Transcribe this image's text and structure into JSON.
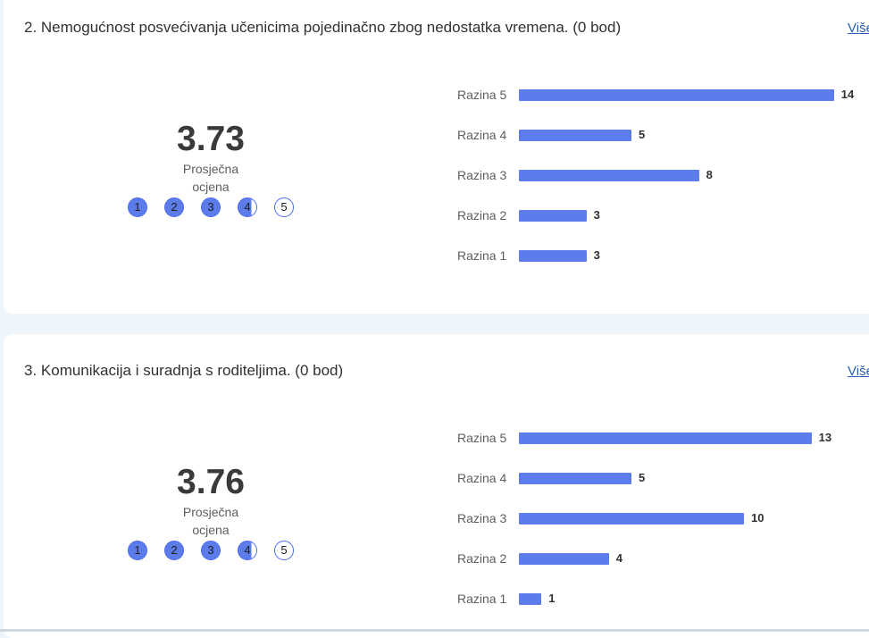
{
  "accent_color": "#5b7cea",
  "more_label": "Više",
  "avg_label": "Prosječna ocjena",
  "scale": [
    "1",
    "2",
    "3",
    "4",
    "5"
  ],
  "questions": [
    {
      "title": "2. Nemogućnost posvećivanja učenicima pojedinačno zbog nedostatka vremena. (0 bod)",
      "average": "3.73",
      "chart_data": {
        "type": "bar",
        "categories": [
          "Razina 5",
          "Razina 4",
          "Razina 3",
          "Razina 2",
          "Razina 1"
        ],
        "values": [
          14,
          5,
          8,
          3,
          3
        ]
      }
    },
    {
      "title": "3. Komunikacija i suradnja s roditeljima. (0 bod)",
      "average": "3.76",
      "chart_data": {
        "type": "bar",
        "categories": [
          "Razina 5",
          "Razina 4",
          "Razina 3",
          "Razina 2",
          "Razina 1"
        ],
        "values": [
          13,
          5,
          10,
          4,
          1
        ]
      }
    }
  ]
}
